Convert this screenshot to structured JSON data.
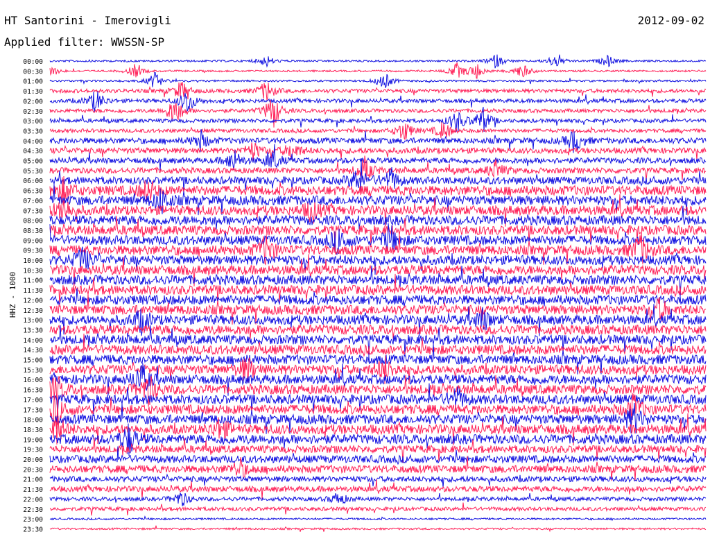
{
  "header": {
    "station": "HT Santorini - Imerovigli",
    "date": "2012-09-02",
    "filter": "Applied filter: WWSSN-SP"
  },
  "chart_data": {
    "type": "line",
    "title": "HT Santorini - Imerovigli",
    "subtitle": "Applied filter: WWSSN-SP",
    "ylabel": "HHZ - 1000",
    "xlabel": "",
    "trace_colors": [
      "#1010e0",
      "#ff1f57"
    ],
    "rows": [
      "00:00",
      "00:30",
      "01:00",
      "01:30",
      "02:00",
      "02:30",
      "03:00",
      "03:30",
      "04:00",
      "04:30",
      "05:00",
      "05:30",
      "06:00",
      "06:30",
      "07:00",
      "07:30",
      "08:00",
      "08:30",
      "09:00",
      "09:30",
      "10:00",
      "10:30",
      "11:00",
      "11:30",
      "12:00",
      "12:30",
      "13:00",
      "13:30",
      "14:00",
      "14:30",
      "15:00",
      "15:30",
      "16:00",
      "16:30",
      "17:00",
      "17:30",
      "18:00",
      "18:30",
      "19:00",
      "19:30",
      "20:00",
      "20:30",
      "21:00",
      "21:30",
      "22:00",
      "22:30",
      "23:00",
      "23:30"
    ],
    "relative_noise_level": [
      1,
      1,
      1,
      2,
      2,
      2,
      2,
      2,
      3,
      3,
      3,
      3,
      4,
      5,
      5,
      5,
      5,
      5,
      5,
      5,
      5,
      5,
      5,
      5,
      5,
      5,
      5,
      5,
      5,
      5,
      5,
      5,
      5,
      5,
      5,
      5,
      5,
      5,
      5,
      4,
      4,
      4,
      3,
      3,
      2,
      2,
      1,
      1
    ],
    "events": [
      {
        "row": "00:00",
        "position": 0.33,
        "amp": 1.0
      },
      {
        "row": "00:00",
        "position": 0.68,
        "amp": 1.2
      },
      {
        "row": "00:00",
        "position": 0.77,
        "amp": 1.2
      },
      {
        "row": "00:00",
        "position": 0.85,
        "amp": 1.0
      },
      {
        "row": "00:30",
        "position": 0.0,
        "amp": 1.2
      },
      {
        "row": "00:30",
        "position": 0.13,
        "amp": 1.1
      },
      {
        "row": "00:30",
        "position": 0.62,
        "amp": 1.3
      },
      {
        "row": "00:30",
        "position": 0.65,
        "amp": 1.3
      },
      {
        "row": "00:30",
        "position": 0.72,
        "amp": 1.3
      },
      {
        "row": "01:00",
        "position": 0.16,
        "amp": 1.4
      },
      {
        "row": "01:00",
        "position": 0.51,
        "amp": 1.5
      },
      {
        "row": "01:30",
        "position": 0.2,
        "amp": 1.6
      },
      {
        "row": "01:30",
        "position": 0.33,
        "amp": 1.8
      },
      {
        "row": "02:00",
        "position": 0.07,
        "amp": 2.0
      },
      {
        "row": "02:00",
        "position": 0.21,
        "amp": 2.2
      },
      {
        "row": "02:30",
        "position": 0.19,
        "amp": 2.6
      },
      {
        "row": "02:30",
        "position": 0.34,
        "amp": 3.0
      },
      {
        "row": "03:00",
        "position": 0.62,
        "amp": 2.0
      },
      {
        "row": "03:00",
        "position": 0.66,
        "amp": 2.2
      },
      {
        "row": "03:30",
        "position": 0.54,
        "amp": 1.8
      },
      {
        "row": "03:30",
        "position": 0.6,
        "amp": 1.6
      },
      {
        "row": "04:00",
        "position": 0.23,
        "amp": 1.6
      },
      {
        "row": "04:00",
        "position": 0.8,
        "amp": 2.0
      },
      {
        "row": "04:30",
        "position": 0.31,
        "amp": 1.4
      },
      {
        "row": "04:30",
        "position": 0.37,
        "amp": 1.5
      },
      {
        "row": "05:00",
        "position": 0.28,
        "amp": 1.8
      },
      {
        "row": "05:00",
        "position": 0.34,
        "amp": 1.6
      },
      {
        "row": "05:30",
        "position": 0.48,
        "amp": 2.0
      },
      {
        "row": "05:30",
        "position": 0.68,
        "amp": 1.6
      },
      {
        "row": "06:00",
        "position": 0.47,
        "amp": 2.2
      },
      {
        "row": "06:00",
        "position": 0.52,
        "amp": 1.8
      },
      {
        "row": "06:30",
        "position": 0.02,
        "amp": 2.0
      },
      {
        "row": "06:30",
        "position": 0.15,
        "amp": 1.8
      },
      {
        "row": "07:00",
        "position": 0.17,
        "amp": 2.0
      },
      {
        "row": "07:30",
        "position": 0.02,
        "amp": 2.2
      },
      {
        "row": "07:30",
        "position": 0.4,
        "amp": 1.8
      },
      {
        "row": "09:00",
        "position": 0.44,
        "amp": 2.2
      },
      {
        "row": "09:00",
        "position": 0.52,
        "amp": 2.0
      },
      {
        "row": "09:30",
        "position": 0.33,
        "amp": 2.5
      },
      {
        "row": "09:30",
        "position": 0.9,
        "amp": 2.8
      },
      {
        "row": "10:00",
        "position": 0.05,
        "amp": 2.0
      },
      {
        "row": "12:30",
        "position": 0.93,
        "amp": 1.8
      },
      {
        "row": "13:00",
        "position": 0.14,
        "amp": 2.0
      },
      {
        "row": "13:00",
        "position": 0.66,
        "amp": 1.8
      },
      {
        "row": "15:30",
        "position": 0.3,
        "amp": 2.2
      },
      {
        "row": "15:30",
        "position": 0.51,
        "amp": 2.0
      },
      {
        "row": "16:00",
        "position": 0.14,
        "amp": 2.5
      },
      {
        "row": "16:30",
        "position": 0.01,
        "amp": 2.2
      },
      {
        "row": "16:30",
        "position": 0.15,
        "amp": 2.6
      },
      {
        "row": "17:00",
        "position": 0.62,
        "amp": 1.8
      },
      {
        "row": "17:30",
        "position": 0.01,
        "amp": 2.6
      },
      {
        "row": "17:30",
        "position": 0.89,
        "amp": 2.4
      },
      {
        "row": "18:00",
        "position": 0.89,
        "amp": 2.5
      },
      {
        "row": "18:30",
        "position": 0.01,
        "amp": 2.4
      },
      {
        "row": "18:30",
        "position": 0.26,
        "amp": 2.0
      },
      {
        "row": "19:00",
        "position": 0.12,
        "amp": 2.6
      },
      {
        "row": "20:30",
        "position": 0.29,
        "amp": 1.6
      },
      {
        "row": "22:00",
        "position": 0.2,
        "amp": 1.4
      },
      {
        "row": "22:00",
        "position": 0.44,
        "amp": 1.2
      }
    ]
  }
}
